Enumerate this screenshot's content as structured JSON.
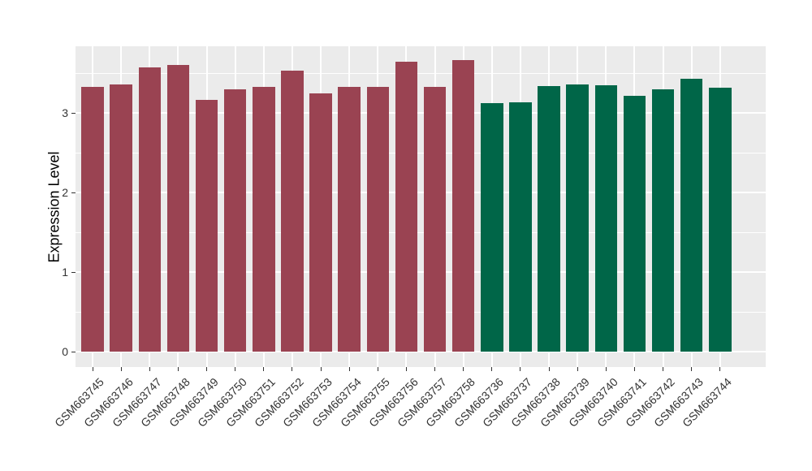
{
  "chart_data": {
    "type": "bar",
    "title": "",
    "xlabel": "",
    "ylabel": "Expression Level",
    "y_ticks": [
      0,
      1,
      2,
      3
    ],
    "y_minor_gridlines": [
      0.5,
      1.5,
      2.5,
      3.5
    ],
    "y_display_range": [
      -0.19,
      3.84
    ],
    "legend_position": "none",
    "grid": "major and minor white gridlines on gray panel",
    "categories": [
      "GSM663745",
      "GSM663746",
      "GSM663747",
      "GSM663748",
      "GSM663749",
      "GSM663750",
      "GSM663751",
      "GSM663752",
      "GSM663753",
      "GSM663754",
      "GSM663755",
      "GSM663756",
      "GSM663757",
      "GSM663758",
      "GSM663736",
      "GSM663737",
      "GSM663738",
      "GSM663739",
      "GSM663740",
      "GSM663741",
      "GSM663742",
      "GSM663743",
      "GSM663744"
    ],
    "values": [
      3.33,
      3.36,
      3.57,
      3.6,
      3.16,
      3.3,
      3.33,
      3.53,
      3.25,
      3.33,
      3.33,
      3.64,
      3.33,
      3.66,
      3.12,
      3.13,
      3.34,
      3.36,
      3.35,
      3.21,
      3.3,
      3.43,
      3.32
    ],
    "groups": [
      {
        "name": "GSM663745-GSM663758",
        "color": "#9A4352",
        "count": 14
      },
      {
        "name": "GSM663736-GSM663744",
        "color": "#006648",
        "count": 9
      }
    ],
    "colors": {
      "panel_background": "#EBEBEB",
      "gridline": "#FFFFFF",
      "tick_mark": "#333333",
      "axis_text": "#333333",
      "axis_title": "#000000",
      "figure_background": "#FFFFFF"
    }
  }
}
